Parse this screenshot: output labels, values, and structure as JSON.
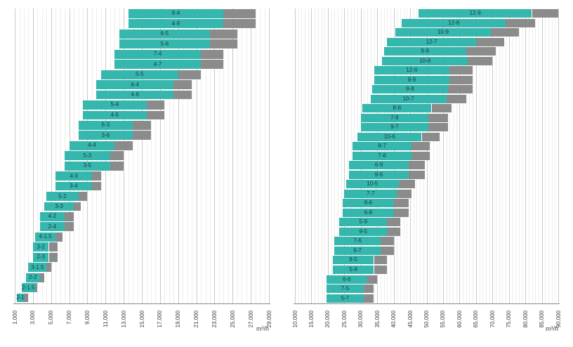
{
  "page": {
    "background": "#ffffff"
  },
  "chart_data": [
    {
      "type": "bar",
      "subtype": "range",
      "orientation": "horizontal",
      "title": "",
      "unit": "m³/h",
      "legend": null,
      "x_axis": {
        "min": 1000,
        "max": 29000,
        "major_step": 2000,
        "minor_step": 500,
        "tick_labels": [
          "1.000",
          "3.000",
          "5.000",
          "7.000",
          "9.000",
          "11.000",
          "13.000",
          "15.000",
          "17.000",
          "19.000",
          "21.000",
          "23.000",
          "25.000",
          "27.000",
          "29.000"
        ]
      },
      "colors": {
        "primary": "#35b7ad",
        "extended": "#8b8b8b",
        "bar_label": "#1d3a42",
        "axis_label": "#3d3d3d"
      },
      "bars": [
        {
          "label": "8-4",
          "start": 13500,
          "primary_end": 24000,
          "extended_end": 27500
        },
        {
          "label": "4-8",
          "start": 13500,
          "primary_end": 24000,
          "extended_end": 27500
        },
        {
          "label": "6-5",
          "start": 12500,
          "primary_end": 22500,
          "extended_end": 25500
        },
        {
          "label": "5-6",
          "start": 12500,
          "primary_end": 22500,
          "extended_end": 25500
        },
        {
          "label": "7-4",
          "start": 12000,
          "primary_end": 21500,
          "extended_end": 24000
        },
        {
          "label": "4-7",
          "start": 12000,
          "primary_end": 21500,
          "extended_end": 24000
        },
        {
          "label": "5-5",
          "start": 10500,
          "primary_end": 19000,
          "extended_end": 21500
        },
        {
          "label": "6-4",
          "start": 10000,
          "primary_end": 18500,
          "extended_end": 20500
        },
        {
          "label": "4-6",
          "start": 10000,
          "primary_end": 18500,
          "extended_end": 20500
        },
        {
          "label": "5-4",
          "start": 8500,
          "primary_end": 15500,
          "extended_end": 17500
        },
        {
          "label": "4-5",
          "start": 8500,
          "primary_end": 15500,
          "extended_end": 17500
        },
        {
          "label": "6-3",
          "start": 8000,
          "primary_end": 14000,
          "extended_end": 16000
        },
        {
          "label": "3-6",
          "start": 8000,
          "primary_end": 14000,
          "extended_end": 16000
        },
        {
          "label": "4-4",
          "start": 7000,
          "primary_end": 12000,
          "extended_end": 14000
        },
        {
          "label": "5-3",
          "start": 6500,
          "primary_end": 11500,
          "extended_end": 13000
        },
        {
          "label": "3-5",
          "start": 6500,
          "primary_end": 11500,
          "extended_end": 13000
        },
        {
          "label": "4-3",
          "start": 5500,
          "primary_end": 9500,
          "extended_end": 10500
        },
        {
          "label": "3-4",
          "start": 5500,
          "primary_end": 9500,
          "extended_end": 10500
        },
        {
          "label": "5-2",
          "start": 4500,
          "primary_end": 8000,
          "extended_end": 9000
        },
        {
          "label": "3-3",
          "start": 4250,
          "primary_end": 7500,
          "extended_end": 8250
        },
        {
          "label": "4-2",
          "start": 3750,
          "primary_end": 6500,
          "extended_end": 7500
        },
        {
          "label": "2-4",
          "start": 3750,
          "primary_end": 6500,
          "extended_end": 7500
        },
        {
          "label": "4-1.5",
          "start": 3250,
          "primary_end": 5500,
          "extended_end": 6250
        },
        {
          "label": "3-2",
          "start": 3000,
          "primary_end": 4750,
          "extended_end": 5750
        },
        {
          "label": "2-3",
          "start": 3000,
          "primary_end": 4750,
          "extended_end": 5750
        },
        {
          "label": "3-1.5",
          "start": 2500,
          "primary_end": 4500,
          "extended_end": 5000
        },
        {
          "label": "2-2",
          "start": 2250,
          "primary_end": 3750,
          "extended_end": 4250
        },
        {
          "label": "2-1.5",
          "start": 1750,
          "primary_end": 3250,
          "extended_end": 3500
        },
        {
          "label": "2-1",
          "start": 1250,
          "primary_end": 2000,
          "extended_end": 2500
        }
      ]
    },
    {
      "type": "bar",
      "subtype": "range",
      "orientation": "horizontal",
      "title": "",
      "unit": "m³/h",
      "legend": null,
      "x_axis": {
        "min": 10000,
        "max": 90000,
        "major_step": 5000,
        "minor_step": 1000,
        "tick_labels": [
          "10.000",
          "15.000",
          "20.000",
          "25.000",
          "30.000",
          "35.000",
          "40.000",
          "45.000",
          "50.000",
          "55.000",
          "60.000",
          "65.000",
          "70.000",
          "75.000",
          "80.000",
          "85.000",
          "90.000"
        ]
      },
      "colors": {
        "primary": "#35b7ad",
        "extended": "#8b8b8b",
        "bar_label": "#1d3a42",
        "axis_label": "#3d3d3d"
      },
      "bars": [
        {
          "label": "12-9",
          "start": 47500,
          "primary_end": 82000,
          "extended_end": 90000
        },
        {
          "label": "12-8",
          "start": 42500,
          "primary_end": 74000,
          "extended_end": 83000
        },
        {
          "label": "10-9",
          "start": 40500,
          "primary_end": 69500,
          "extended_end": 78000
        },
        {
          "label": "12-7",
          "start": 38000,
          "primary_end": 65000,
          "extended_end": 73500
        },
        {
          "label": "9-9",
          "start": 37000,
          "primary_end": 62000,
          "extended_end": 71000
        },
        {
          "label": "10-8",
          "start": 36500,
          "primary_end": 62500,
          "extended_end": 70000
        },
        {
          "label": "12-6",
          "start": 34000,
          "primary_end": 57000,
          "extended_end": 64000
        },
        {
          "label": "8-9",
          "start": 34000,
          "primary_end": 57000,
          "extended_end": 64000
        },
        {
          "label": "9-8",
          "start": 33500,
          "primary_end": 56500,
          "extended_end": 64000
        },
        {
          "label": "10-7",
          "start": 33000,
          "primary_end": 56000,
          "extended_end": 62000
        },
        {
          "label": "8-8",
          "start": 30500,
          "primary_end": 51500,
          "extended_end": 57500
        },
        {
          "label": "7-9",
          "start": 30000,
          "primary_end": 50500,
          "extended_end": 56500
        },
        {
          "label": "9-7",
          "start": 30000,
          "primary_end": 50500,
          "extended_end": 56500
        },
        {
          "label": "10-6",
          "start": 29000,
          "primary_end": 48500,
          "extended_end": 54000
        },
        {
          "label": "8-7",
          "start": 27500,
          "primary_end": 45500,
          "extended_end": 51000
        },
        {
          "label": "7-8",
          "start": 27500,
          "primary_end": 45500,
          "extended_end": 51000
        },
        {
          "label": "6-9",
          "start": 26500,
          "primary_end": 44500,
          "extended_end": 49500
        },
        {
          "label": "9-6",
          "start": 26500,
          "primary_end": 44500,
          "extended_end": 49500
        },
        {
          "label": "10-5",
          "start": 25500,
          "primary_end": 41500,
          "extended_end": 46500
        },
        {
          "label": "7-7",
          "start": 25000,
          "primary_end": 41000,
          "extended_end": 45500
        },
        {
          "label": "8-6",
          "start": 24500,
          "primary_end": 40000,
          "extended_end": 44500
        },
        {
          "label": "6-8",
          "start": 24500,
          "primary_end": 40000,
          "extended_end": 44500
        },
        {
          "label": "5-9",
          "start": 23500,
          "primary_end": 38000,
          "extended_end": 42000
        },
        {
          "label": "9-5",
          "start": 23500,
          "primary_end": 38000,
          "extended_end": 42000
        },
        {
          "label": "7-6",
          "start": 22000,
          "primary_end": 36000,
          "extended_end": 40000
        },
        {
          "label": "6-7",
          "start": 22000,
          "primary_end": 36000,
          "extended_end": 40000
        },
        {
          "label": "8-5",
          "start": 21500,
          "primary_end": 34000,
          "extended_end": 38000
        },
        {
          "label": "5-8",
          "start": 21500,
          "primary_end": 34000,
          "extended_end": 38000
        },
        {
          "label": "6-6",
          "start": 19500,
          "primary_end": 32000,
          "extended_end": 35000
        },
        {
          "label": "7-5",
          "start": 19500,
          "primary_end": 31000,
          "extended_end": 34000
        },
        {
          "label": "5-7",
          "start": 19500,
          "primary_end": 31000,
          "extended_end": 34000
        }
      ]
    }
  ]
}
